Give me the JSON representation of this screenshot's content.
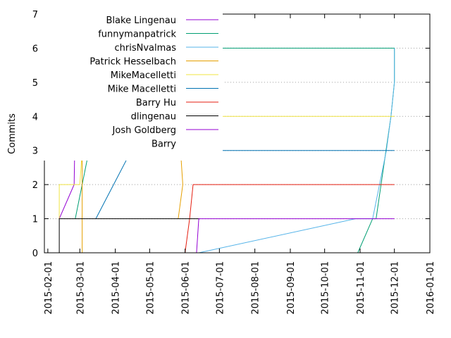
{
  "chart_data": {
    "type": "line",
    "title": "",
    "xlabel": "",
    "ylabel": "Commits",
    "xlim": [
      "2015-01-29",
      "2016-01-01"
    ],
    "ylim": [
      0,
      7
    ],
    "x_ticks": [
      "2015-02-01",
      "2015-03-01",
      "2015-04-01",
      "2015-05-01",
      "2015-06-01",
      "2015-07-01",
      "2015-08-01",
      "2015-09-01",
      "2015-10-01",
      "2015-11-01",
      "2015-12-01",
      "2016-01-01"
    ],
    "y_ticks": [
      "0",
      "1",
      "2",
      "3",
      "4",
      "5",
      "6",
      "7"
    ],
    "grid": true,
    "legend_position": "top-left",
    "series": [
      {
        "name": "Blake Lingenau",
        "color": "#9400d3",
        "points": [
          [
            "2015-02-11",
            1
          ],
          [
            "2015-02-24",
            2
          ],
          [
            "2015-02-25",
            4
          ],
          [
            "2015-03-02",
            4
          ],
          [
            "2015-03-03",
            5
          ],
          [
            "2015-03-07",
            5
          ],
          [
            "2015-03-08",
            6
          ],
          [
            "2015-03-19",
            6
          ],
          [
            "2015-04-16",
            6
          ],
          [
            "2015-04-20",
            6
          ],
          [
            "2015-04-22",
            6.5
          ],
          [
            "2015-04-24",
            7
          ]
        ]
      },
      {
        "name": "funnymanpatrick",
        "color": "#009e73",
        "points": [
          [
            "2015-02-25",
            1
          ],
          [
            "2015-03-03",
            2
          ],
          [
            "2015-03-09",
            3
          ],
          [
            "2015-04-17",
            4
          ],
          [
            "2015-04-26",
            5
          ],
          [
            "2015-05-19",
            5
          ],
          [
            "2015-05-20",
            6
          ],
          [
            "2015-12-01",
            6
          ],
          [
            "2015-12-01",
            5
          ],
          [
            "2015-11-28",
            4
          ],
          [
            "2015-11-15",
            1
          ],
          [
            "2015-11-12",
            1
          ],
          [
            "2015-10-30",
            0
          ]
        ]
      },
      {
        "name": "chrisNvalmas",
        "color": "#56b4e9",
        "points": [
          [
            "2015-06-13",
            0
          ],
          [
            "2015-10-28",
            1
          ],
          [
            "2015-11-12",
            1
          ],
          [
            "2015-11-24",
            3
          ],
          [
            "2015-11-28",
            4
          ],
          [
            "2015-12-01",
            5
          ],
          [
            "2015-12-01",
            6
          ]
        ]
      },
      {
        "name": "Patrick Hesselbach",
        "color": "#e69f00",
        "points": [
          [
            "2015-03-03",
            0
          ],
          [
            "2015-03-03",
            3
          ],
          [
            "2015-05-28",
            3
          ],
          [
            "2015-05-30",
            2
          ],
          [
            "2015-05-26",
            1
          ]
        ]
      },
      {
        "name": "MikeMacelletti",
        "color": "#f0e442",
        "points": [
          [
            "2015-02-11",
            1
          ],
          [
            "2015-02-11",
            2
          ],
          [
            "2015-03-01",
            2
          ],
          [
            "2015-03-03",
            3
          ],
          [
            "2015-04-20",
            3
          ],
          [
            "2015-05-01",
            4
          ],
          [
            "2015-05-19",
            4
          ],
          [
            "2015-12-01",
            4
          ]
        ]
      },
      {
        "name": "Mike Macelletti",
        "color": "#0072b2",
        "points": [
          [
            "2015-03-15",
            1
          ],
          [
            "2015-04-15",
            3
          ],
          [
            "2015-12-01",
            3
          ]
        ]
      },
      {
        "name": "Barry Hu",
        "color": "#e51e10",
        "points": [
          [
            "2015-06-01",
            0
          ],
          [
            "2015-06-05",
            1
          ],
          [
            "2015-06-08",
            2
          ],
          [
            "2015-12-01",
            2
          ]
        ]
      },
      {
        "name": "dlingenau",
        "color": "#000000",
        "points": [
          [
            "2015-02-11",
            0
          ],
          [
            "2015-02-11",
            1
          ],
          [
            "2015-06-14",
            1
          ]
        ]
      },
      {
        "name": "Josh Goldberg",
        "color": "#9400d3",
        "points": [
          [
            "2015-06-11",
            0
          ],
          [
            "2015-06-13",
            1
          ],
          [
            "2015-12-01",
            1
          ]
        ]
      },
      {
        "name": "Barry",
        "color": "#009e73",
        "points": []
      }
    ]
  }
}
